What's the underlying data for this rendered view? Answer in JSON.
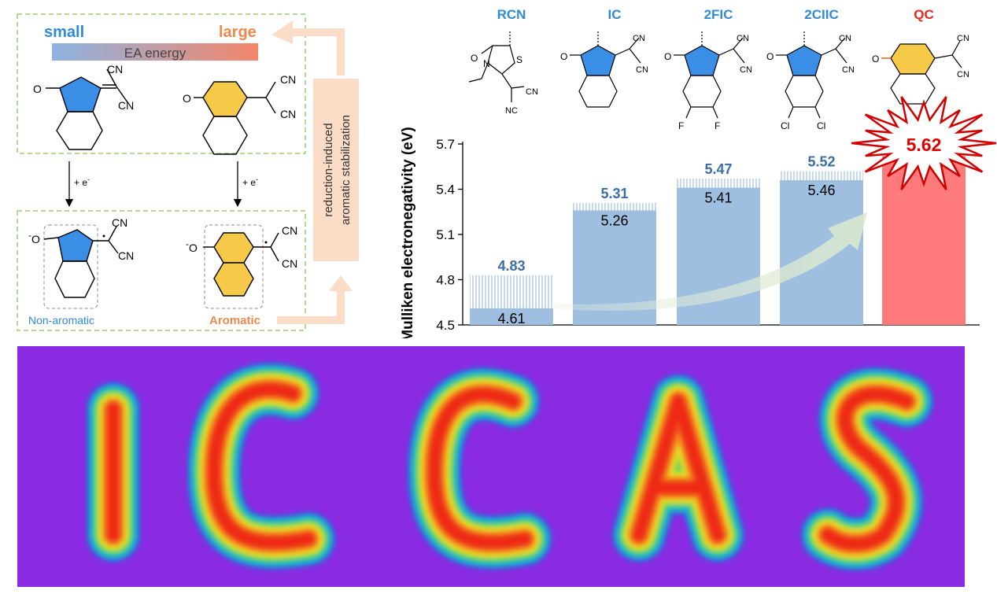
{
  "scheme": {
    "small_label": "small",
    "large_label": "large",
    "ea_energy_label": "EA energy",
    "cn_label": "CN",
    "o_label": "O",
    "o_minus_label": "O",
    "minus_sign": "-",
    "e_label": "+ e",
    "e_sup": "-",
    "side_label_line1": "reduction-induced",
    "side_label_line2": "aromatic stabilization",
    "nonaromatic_label": "Non-aromatic",
    "aromatic_label": "Aromatic",
    "colors": {
      "blue_ring": "#3a8ee6",
      "yellow_ring": "#f7c948",
      "arrow": "#fbdcc7",
      "dash_box": "#9ccf74"
    }
  },
  "structures": {
    "atom_labels": {
      "cn": "CN",
      "o": "O",
      "s": "S",
      "n": "N",
      "nc": "NC",
      "f": "F",
      "cl": "Cl"
    }
  },
  "chart_data": {
    "type": "bar",
    "categories": [
      "RCN",
      "IC",
      "2FIC",
      "2ClIC",
      "QC"
    ],
    "category_labels": [
      "RCN",
      "IC",
      "2FIC",
      "2CIIC",
      "QC"
    ],
    "ylabel": "Mulliken electronegativity (eV)",
    "ylim": [
      4.5,
      5.7
    ],
    "yticks": [
      "4.5",
      "4.8",
      "5.1",
      "5.4",
      "5.7"
    ],
    "series": [
      {
        "values": [
          4.83,
          5.31,
          5.47,
          5.52,
          5.62
        ]
      },
      {
        "values": [
          4.61,
          5.26,
          5.41,
          5.46,
          null
        ]
      }
    ],
    "upper_labels": [
      "4.83",
      "5.31",
      "5.47",
      "5.52",
      "5.62"
    ],
    "inner_labels": [
      "4.61",
      "5.26",
      "5.41",
      "5.46",
      ""
    ],
    "colors": {
      "bar": "#9fbfe0",
      "highlight": "#ff7b7b",
      "label_blue": "#3b6ea5",
      "label_red": "#e00000",
      "cat_blue": "#2f8bd8",
      "cat_red": "#e8261d"
    }
  },
  "heatmap": {
    "letters": [
      "I",
      "C",
      "C",
      "A",
      "S"
    ],
    "background": "#8a2be2"
  }
}
